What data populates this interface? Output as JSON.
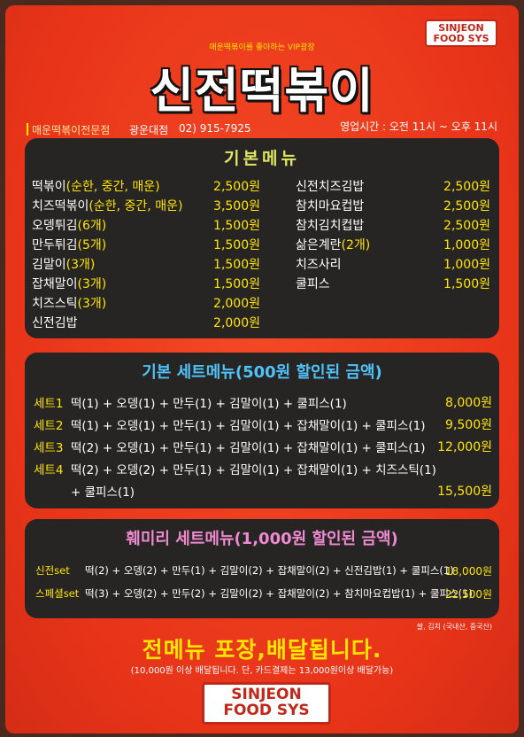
{
  "header": {
    "badge": {
      "line1": "SINJEON",
      "line2": "FOOD SYS"
    },
    "tagline": "매운떡볶이를 좋아하는 VIP광장",
    "brand": "신전떡볶이",
    "branch": "매운떡볶이전문점",
    "store": "광운대점",
    "phone": "02) 915-7925",
    "hours": "영업시간 : 오전 11시 ~ 오후 11시"
  },
  "basic": {
    "title": "기본메뉴",
    "left": [
      {
        "name": "떡볶이",
        "opt": "(순한, 중간, 매운)",
        "price": "2,500원"
      },
      {
        "name": "치즈떡볶이",
        "opt": "(순한, 중간, 매운)",
        "price": "3,500원"
      },
      {
        "name": "오뎅튀김",
        "opt": "(6개)",
        "price": "1,500원"
      },
      {
        "name": "만두튀김",
        "opt": "(5개)",
        "price": "1,500원"
      },
      {
        "name": "김말이",
        "opt": "(3개)",
        "price": "1,500원"
      },
      {
        "name": "잡채말이",
        "opt": "(3개)",
        "price": "1,500원"
      },
      {
        "name": "치즈스틱",
        "opt": "(3개)",
        "price": "2,000원"
      },
      {
        "name": "신전김밥",
        "opt": "",
        "price": "2,000원"
      }
    ],
    "right": [
      {
        "name": "신전치즈김밥",
        "opt": "",
        "price": "2,500원"
      },
      {
        "name": "참치마요컵밥",
        "opt": "",
        "price": "2,500원"
      },
      {
        "name": "참치김치컵밥",
        "opt": "",
        "price": "2,500원"
      },
      {
        "name": "삶은계란",
        "opt": "(2개)",
        "price": "1,000원"
      },
      {
        "name": "치즈사리",
        "opt": "",
        "price": "1,000원"
      },
      {
        "name": "쿨피스",
        "opt": "",
        "price": "1,500원"
      }
    ]
  },
  "sets": {
    "title": "기본 세트메뉴(500원 할인된 금액)",
    "items": [
      {
        "label": "세트1",
        "desc": "떡(1) + 오뎅(1) + 만두(1) + 김말이(1) + 쿨피스(1)",
        "price": "8,000원"
      },
      {
        "label": "세트2",
        "desc": "떡(1) + 오뎅(1) + 만두(1) + 김말이(1) + 잡채말이(1) + 쿨피스(1)",
        "price": "9,500원"
      },
      {
        "label": "세트3",
        "desc": "떡(2) + 오뎅(1) + 만두(1) + 김말이(1) + 잡채말이(1) + 쿨피스(1)",
        "price": "12,000원"
      },
      {
        "label": "세트4",
        "desc": "떡(2) + 오뎅(2) + 만두(1) + 김말이(1) + 잡채말이(1) + 치즈스틱(1)",
        "price": ""
      }
    ],
    "continuation": {
      "desc": "+ 쿨피스(1)",
      "price": "15,500원"
    }
  },
  "family": {
    "title": "훼미리 세트메뉴(1,000원 할인된 금액)",
    "items": [
      {
        "label": "신전set",
        "desc": "떡(2) + 오뎅(2) + 만두(1) + 김말이(2) + 잡채말이(2) + 신전김밥(1) + 쿨피스(1)",
        "price": "18,000원"
      },
      {
        "label": "스페셜set",
        "desc": "떡(3) + 오뎅(2) + 만두(2) + 김말이(2) + 잡채말이(2) + 참치마요컵밥(1) + 쿨피스(1)",
        "price": "22,500원"
      }
    ]
  },
  "origin_note": "쌀, 김치 (국내산, 중국산)",
  "delivery": {
    "headline": "전메뉴 포장,배달됩니다.",
    "sub": "(10,000원 이상 배달됩니다. 단, 카드결제는 13,000원이상 배달가능)"
  },
  "footer_badge": {
    "line1": "SINJEON",
    "line2": "FOOD SYS"
  }
}
